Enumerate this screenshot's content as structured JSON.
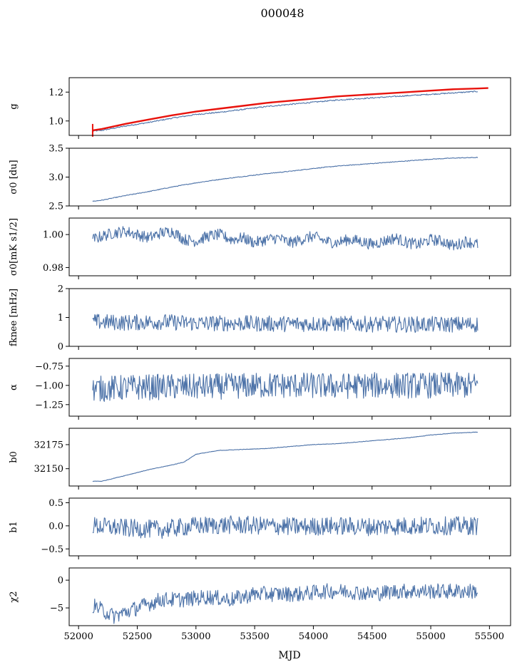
{
  "figure": {
    "title": "000048",
    "xlabel": "MJD",
    "line_color": "#4c72a8",
    "fit_color": "#e8120c"
  },
  "chart_data": [
    {
      "type": "line",
      "ylabel": "g",
      "xlim": [
        51920,
        55680
      ],
      "ylim": [
        0.9,
        1.3
      ],
      "yticks": [
        1.0,
        1.2
      ],
      "yticklabels": [
        "1.0",
        "1.2"
      ],
      "series": [
        {
          "x": [
            52120,
            52200,
            52400,
            52600,
            52800,
            53000,
            53200,
            53400,
            53600,
            53800,
            54000,
            54200,
            54400,
            54600,
            54800,
            55000,
            55200,
            55400
          ],
          "y": [
            0.93,
            0.935,
            0.965,
            0.99,
            1.02,
            1.045,
            1.06,
            1.08,
            1.1,
            1.115,
            1.13,
            1.145,
            1.155,
            1.165,
            1.175,
            1.185,
            1.195,
            1.205
          ]
        },
        {
          "role": "fit",
          "x": [
            52120,
            52200,
            52400,
            52600,
            52800,
            53000,
            53200,
            53400,
            53600,
            53800,
            54000,
            54200,
            54400,
            54600,
            54800,
            55000,
            55200,
            55400,
            55490
          ],
          "y": [
            0.935,
            0.945,
            0.98,
            1.01,
            1.04,
            1.065,
            1.085,
            1.105,
            1.125,
            1.14,
            1.155,
            1.17,
            1.18,
            1.19,
            1.2,
            1.21,
            1.22,
            1.225,
            1.228
          ]
        }
      ]
    },
    {
      "type": "line",
      "ylabel": "σ0 [du]",
      "xlim": [
        51920,
        55680
      ],
      "ylim": [
        2.5,
        3.5
      ],
      "yticks": [
        2.5,
        3.0,
        3.5
      ],
      "yticklabels": [
        "2.5",
        "3.0",
        "3.5"
      ],
      "series": [
        {
          "x": [
            52120,
            52200,
            52400,
            52600,
            52800,
            53000,
            53200,
            53400,
            53600,
            53800,
            54000,
            54200,
            54400,
            54600,
            54800,
            55000,
            55200,
            55400
          ],
          "y": [
            2.58,
            2.6,
            2.68,
            2.75,
            2.83,
            2.9,
            2.96,
            3.01,
            3.06,
            3.1,
            3.15,
            3.19,
            3.22,
            3.25,
            3.28,
            3.31,
            3.33,
            3.34
          ]
        }
      ]
    },
    {
      "type": "line",
      "ylabel": "σ0[mK s1/2]",
      "xlim": [
        51920,
        55680
      ],
      "ylim": [
        0.975,
        1.01
      ],
      "yticks": [
        0.98,
        1.0
      ],
      "yticklabels": [
        "0.98",
        "1.00"
      ],
      "series": [
        {
          "x": [
            52120,
            52200,
            52300,
            52400,
            52500,
            52600,
            52700,
            52800,
            52900,
            53000,
            53100,
            53200,
            53300,
            53400,
            53500,
            53600,
            53700,
            53800,
            53900,
            54000,
            54100,
            54200,
            54300,
            54400,
            54500,
            54600,
            54700,
            54800,
            54900,
            55000,
            55100,
            55200,
            55300,
            55400
          ],
          "y": [
            0.997,
            0.999,
            1.001,
            1.002,
            1.0,
            0.998,
            1.001,
            1.002,
            0.997,
            0.996,
            0.999,
            1.0,
            0.997,
            0.998,
            0.995,
            0.997,
            0.998,
            0.995,
            0.997,
            0.999,
            0.996,
            0.995,
            0.997,
            0.996,
            0.994,
            0.996,
            0.998,
            0.995,
            0.994,
            0.997,
            0.996,
            0.993,
            0.996,
            0.994
          ]
        }
      ]
    },
    {
      "type": "line",
      "ylabel": "fknee [mHz]",
      "xlim": [
        51920,
        55680
      ],
      "ylim": [
        0,
        2
      ],
      "yticks": [
        0,
        1,
        2
      ],
      "yticklabels": [
        "0",
        "1",
        "2"
      ],
      "series": [
        {
          "x": [
            52120,
            52400,
            52700,
            53000,
            53300,
            53600,
            53900,
            54200,
            54500,
            54800,
            55100,
            55400
          ],
          "y": [
            0.85,
            0.82,
            0.85,
            0.8,
            0.8,
            0.78,
            0.78,
            0.78,
            0.77,
            0.76,
            0.76,
            0.76
          ]
        }
      ]
    },
    {
      "type": "line",
      "ylabel": "α",
      "xlim": [
        51920,
        55680
      ],
      "ylim": [
        -1.4,
        -0.65
      ],
      "yticks": [
        -1.25,
        -1.0,
        -0.75
      ],
      "yticklabels": [
        "−1.25",
        "−1.00",
        "−0.75"
      ],
      "series": [
        {
          "x": [
            52120,
            52400,
            52700,
            53000,
            53300,
            53600,
            53900,
            54200,
            54500,
            54800,
            55100,
            55400
          ],
          "y": [
            -1.05,
            -1.03,
            -1.02,
            -1.02,
            -1.01,
            -1.0,
            -1.0,
            -1.01,
            -1.0,
            -1.0,
            -1.0,
            -1.0
          ]
        }
      ]
    },
    {
      "type": "line",
      "ylabel": "b0",
      "xlim": [
        51920,
        55680
      ],
      "ylim": [
        32132,
        32192
      ],
      "yticks": [
        32150,
        32175
      ],
      "yticklabels": [
        "32150",
        "32175"
      ],
      "series": [
        {
          "x": [
            52120,
            52200,
            52400,
            52600,
            52800,
            52900,
            53000,
            53200,
            53400,
            53600,
            53800,
            54000,
            54200,
            54400,
            54600,
            54800,
            55000,
            55200,
            55400
          ],
          "y": [
            32137,
            32137,
            32143,
            32149,
            32154,
            32157,
            32165,
            32169,
            32170,
            32171,
            32173,
            32175,
            32176,
            32178,
            32180,
            32182,
            32185,
            32187,
            32188
          ]
        }
      ]
    },
    {
      "type": "line",
      "ylabel": "b1",
      "xlim": [
        51920,
        55680
      ],
      "ylim": [
        -0.65,
        0.6
      ],
      "yticks": [
        -0.5,
        0.0,
        0.5
      ],
      "yticklabels": [
        "−0.5",
        "0.0",
        "0.5"
      ],
      "series": [
        {
          "x": [
            52120,
            52400,
            52700,
            53000,
            53300,
            53600,
            53900,
            54200,
            54500,
            54800,
            55100,
            55400
          ],
          "y": [
            0.0,
            -0.05,
            -0.08,
            0.0,
            0.02,
            0.0,
            -0.02,
            0.0,
            -0.02,
            0.0,
            0.0,
            0.0
          ]
        }
      ]
    },
    {
      "type": "line",
      "ylabel": "χ2",
      "xlim": [
        51920,
        55680
      ],
      "ylim": [
        -8.2,
        2.2
      ],
      "yticks": [
        -5,
        0
      ],
      "yticklabels": [
        "−5",
        "0"
      ],
      "series": [
        {
          "x": [
            52120,
            52300,
            52500,
            52700,
            52900,
            53100,
            53300,
            53500,
            53700,
            53900,
            54100,
            54300,
            54500,
            54700,
            54900,
            55100,
            55300,
            55400
          ],
          "y": [
            -4.5,
            -6.5,
            -5.0,
            -3.5,
            -3.5,
            -3.0,
            -3.5,
            -2.5,
            -2.5,
            -2.5,
            -2.0,
            -2.0,
            -2.5,
            -2.0,
            -2.0,
            -2.0,
            -2.0,
            -2.0
          ]
        }
      ]
    }
  ],
  "shared_x_axis": {
    "ticks": [
      52000,
      52500,
      53000,
      53500,
      54000,
      54500,
      55000,
      55500
    ],
    "ticklabels": [
      "52000",
      "52500",
      "53000",
      "53500",
      "54000",
      "54500",
      "55000",
      "55500"
    ]
  }
}
